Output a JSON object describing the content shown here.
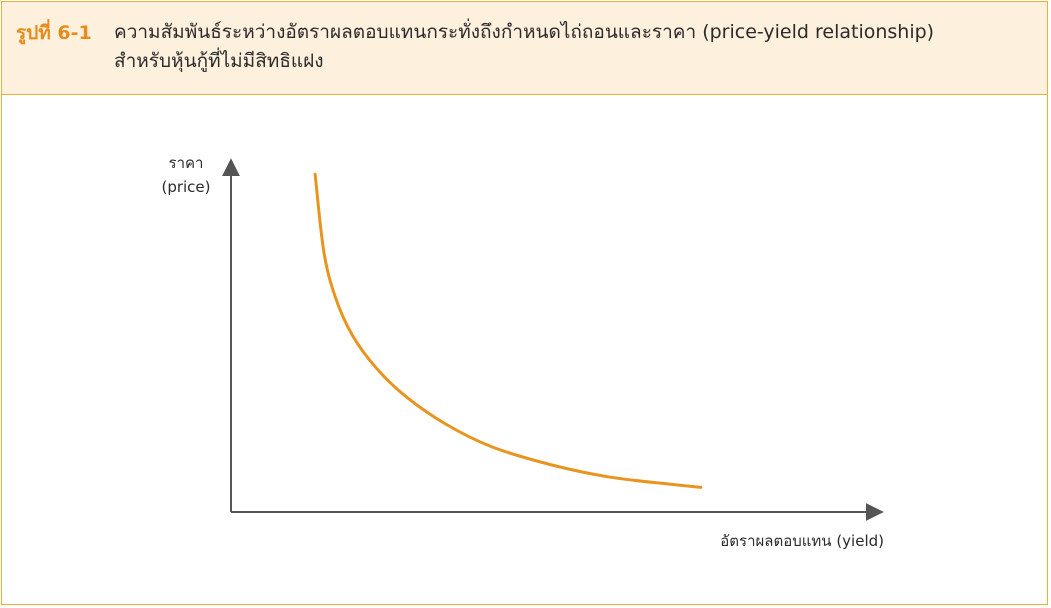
{
  "figure": {
    "number": "รูปที่ 6-1",
    "caption_line1": "ความสัมพันธ์ระหว่างอัตราผลตอบแทนกระทั่งถึงกำหนดไถ่ถอนและราคา (price-yield relationship)",
    "caption_line2": "สำหรับหุ้นกู้ที่ไม่มีสิทธิแฝง"
  },
  "colors": {
    "accent": "#f0ad3a",
    "header_bg": "#fdf0dc",
    "figure_number": "#e98b1c",
    "curve": "#e8941f",
    "axis": "#555555"
  },
  "chart_data": {
    "type": "line",
    "title": "",
    "ylabel_line1": "ราคา",
    "ylabel_line2": "(price)",
    "xlabel": "อัตราผลตอบแทน (yield)",
    "grid": false,
    "axis_ticks": false,
    "xlim": [
      0,
      10
    ],
    "ylim": [
      0,
      10
    ],
    "series": [
      {
        "x": [
          1.45,
          1.6,
          1.8,
          2.1,
          2.5,
          3.0,
          3.7,
          4.5,
          5.5,
          6.5,
          7.5,
          8.1
        ],
        "values": [
          9.6,
          7.4,
          6.1,
          5.0,
          4.1,
          3.3,
          2.5,
          1.85,
          1.35,
          1.0,
          0.8,
          0.7
        ]
      }
    ]
  }
}
